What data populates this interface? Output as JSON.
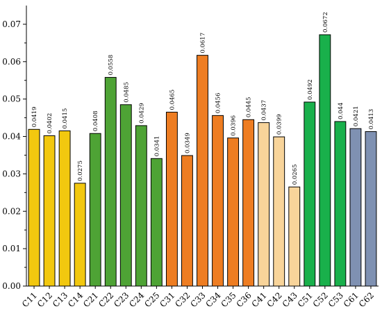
{
  "chart_data": {
    "type": "bar",
    "title": "",
    "xlabel": "",
    "ylabel": "",
    "ylim": [
      0,
      0.075
    ],
    "yticks": [
      "0.00",
      "0.01",
      "0.02",
      "0.03",
      "0.04",
      "0.05",
      "0.06",
      "0.07"
    ],
    "grid": false,
    "legend": "none",
    "categories": [
      "C11",
      "C12",
      "C13",
      "C14",
      "C21",
      "C22",
      "C23",
      "C24",
      "C25",
      "C31",
      "C32",
      "C33",
      "C34",
      "C35",
      "C36",
      "C41",
      "C42",
      "C43",
      "C51",
      "C52",
      "C53",
      "C61",
      "C62"
    ],
    "values": [
      0.0419,
      0.0402,
      0.0415,
      0.0275,
      0.0408,
      0.0558,
      0.0485,
      0.0429,
      0.0341,
      0.0465,
      0.0349,
      0.0617,
      0.0456,
      0.0396,
      0.0445,
      0.0437,
      0.0399,
      0.0265,
      0.0492,
      0.0672,
      0.044,
      0.0421,
      0.0413
    ],
    "value_labels": [
      "0.0419",
      "0.0402",
      "0.0415",
      "0.0275",
      "0.0408",
      "0.0558",
      "0.0485",
      "0.0429",
      "0.0341",
      "0.0465",
      "0.0349",
      "0.0617",
      "0.0456",
      "0.0396",
      "0.0445",
      "0.0437",
      "0.0399",
      "0.0265",
      "0.0492",
      "0.0672",
      "0.044",
      "0.0421",
      "0.0413"
    ],
    "group_colors": {
      "C1": "#f2c80f",
      "C2": "#4ea335",
      "C3": "#ee7d22",
      "C4": "#f8d49a",
      "C5": "#19b04b",
      "C6": "#7f91b2"
    }
  }
}
